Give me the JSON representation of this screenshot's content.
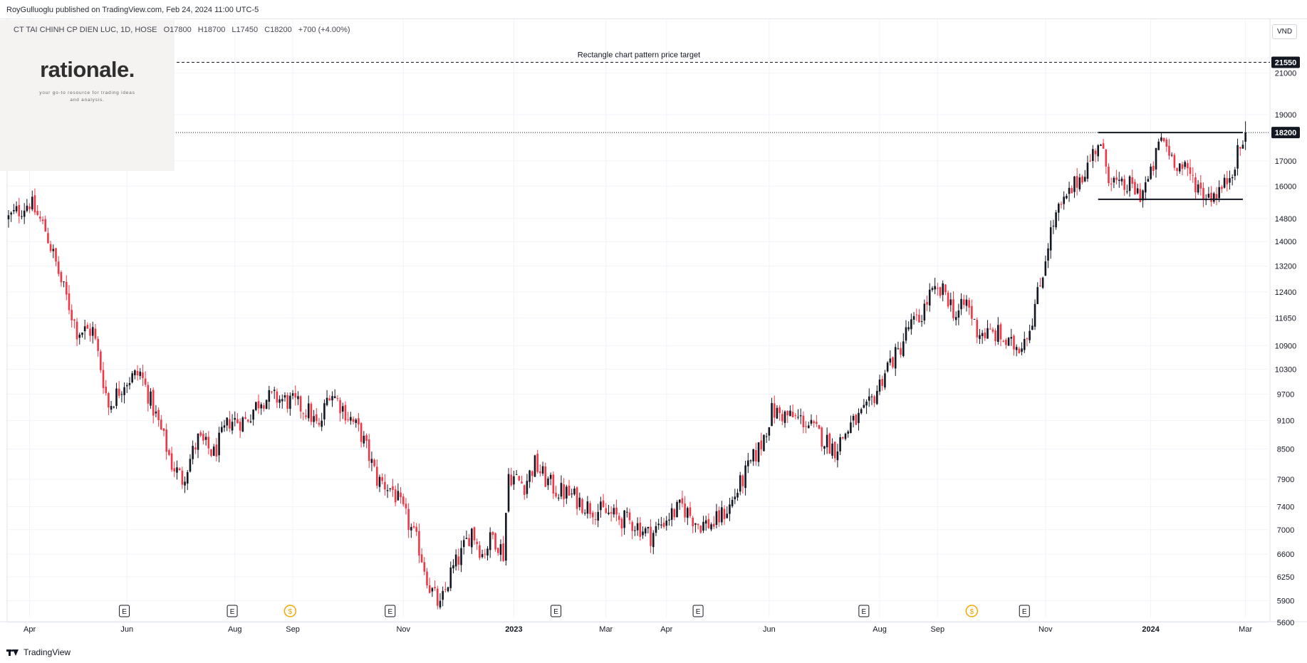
{
  "header": {
    "publisher_line": "RoyGulluoglu published on TradingView.com, Feb 24, 2024 11:00 UTC-5"
  },
  "symbol": {
    "name": "CT TAI CHINH CP DIEN LUC, 1D, HOSE",
    "open": "O17800",
    "high": "H18700",
    "low": "L17450",
    "close": "C18200",
    "change": "+700 (+4.00%)"
  },
  "watermark": {
    "title": "rationale.",
    "subtitle": "your go-to resource for trading ideas and analysis."
  },
  "currency": "VND",
  "footer": {
    "logo_text": "TradingView"
  },
  "colors": {
    "up": "#131722",
    "down": "#f23645",
    "grid": "#f0f3fa",
    "axis_text": "#131722",
    "price_label_bg": "#131722"
  },
  "chart_data": {
    "type": "candlestick",
    "scale": "log",
    "price_axis_ticks": [
      21000,
      19000,
      17000,
      16000,
      14800,
      14000,
      13200,
      12400,
      11650,
      10900,
      10300,
      9700,
      9100,
      8500,
      7900,
      7400,
      7000,
      6600,
      6250,
      5900,
      5600
    ],
    "time_axis_ticks": [
      {
        "label": "Apr",
        "bold": false,
        "i": 8
      },
      {
        "label": "Jun",
        "bold": false,
        "i": 45
      },
      {
        "label": "Aug",
        "bold": false,
        "i": 86
      },
      {
        "label": "Sep",
        "bold": false,
        "i": 108
      },
      {
        "label": "Nov",
        "bold": false,
        "i": 150
      },
      {
        "label": "2023",
        "bold": true,
        "i": 192
      },
      {
        "label": "Mar",
        "bold": false,
        "i": 227
      },
      {
        "label": "Apr",
        "bold": false,
        "i": 250
      },
      {
        "label": "Jun",
        "bold": false,
        "i": 289
      },
      {
        "label": "Aug",
        "bold": false,
        "i": 331
      },
      {
        "label": "Sep",
        "bold": false,
        "i": 353
      },
      {
        "label": "Nov",
        "bold": false,
        "i": 394
      },
      {
        "label": "2024",
        "bold": true,
        "i": 434
      },
      {
        "label": "Mar",
        "bold": false,
        "i": 470
      }
    ],
    "annotations": [
      {
        "type": "hline",
        "style": "dashed",
        "price": 21550,
        "label": "Rectangle chart pattern price target"
      },
      {
        "type": "segment",
        "price": 18200,
        "from_i": 414,
        "to_i": 469
      },
      {
        "type": "segment",
        "price": 15500,
        "from_i": 414,
        "to_i": 469
      }
    ],
    "last_price": 18200,
    "price_labels": [
      21550,
      18200
    ],
    "event_markers": [
      {
        "label": "E",
        "i": 44,
        "kind": "earnings"
      },
      {
        "label": "E",
        "i": 85,
        "kind": "earnings"
      },
      {
        "label": "$",
        "i": 107,
        "kind": "dividend"
      },
      {
        "label": "E",
        "i": 145,
        "kind": "earnings"
      },
      {
        "label": "E",
        "i": 208,
        "kind": "earnings"
      },
      {
        "label": "E",
        "i": 262,
        "kind": "earnings"
      },
      {
        "label": "E",
        "i": 325,
        "kind": "earnings"
      },
      {
        "label": "$",
        "i": 366,
        "kind": "dividend"
      },
      {
        "label": "E",
        "i": 386,
        "kind": "earnings"
      }
    ],
    "closes_anchor": [
      [
        0,
        14800
      ],
      [
        8,
        15400
      ],
      [
        14,
        14400
      ],
      [
        20,
        12700
      ],
      [
        26,
        11300
      ],
      [
        32,
        11300
      ],
      [
        38,
        9400
      ],
      [
        44,
        10000
      ],
      [
        50,
        10200
      ],
      [
        56,
        9200
      ],
      [
        62,
        8200
      ],
      [
        66,
        7900
      ],
      [
        72,
        8700
      ],
      [
        78,
        8400
      ],
      [
        84,
        9100
      ],
      [
        90,
        9100
      ],
      [
        96,
        9600
      ],
      [
        102,
        9600
      ],
      [
        108,
        9500
      ],
      [
        114,
        9300
      ],
      [
        118,
        8900
      ],
      [
        122,
        9800
      ],
      [
        128,
        9300
      ],
      [
        134,
        8800
      ],
      [
        140,
        7900
      ],
      [
        146,
        7700
      ],
      [
        152,
        7100
      ],
      [
        156,
        6700
      ],
      [
        160,
        6100
      ],
      [
        164,
        5800
      ],
      [
        168,
        6300
      ],
      [
        172,
        6600
      ],
      [
        176,
        7000
      ],
      [
        180,
        6600
      ],
      [
        184,
        6900
      ],
      [
        187,
        6700
      ],
      [
        188,
        6600
      ],
      [
        189,
        7300
      ],
      [
        190,
        8000
      ],
      [
        196,
        7800
      ],
      [
        200,
        8200
      ],
      [
        204,
        7900
      ],
      [
        208,
        7700
      ],
      [
        214,
        7600
      ],
      [
        220,
        7400
      ],
      [
        226,
        7300
      ],
      [
        232,
        7200
      ],
      [
        238,
        7100
      ],
      [
        244,
        6900
      ],
      [
        250,
        7200
      ],
      [
        256,
        7400
      ],
      [
        262,
        7100
      ],
      [
        268,
        7100
      ],
      [
        274,
        7400
      ],
      [
        280,
        8000
      ],
      [
        286,
        8600
      ],
      [
        290,
        9300
      ],
      [
        296,
        9200
      ],
      [
        302,
        9100
      ],
      [
        308,
        8800
      ],
      [
        314,
        8500
      ],
      [
        320,
        9000
      ],
      [
        326,
        9300
      ],
      [
        330,
        9800
      ],
      [
        334,
        10400
      ],
      [
        338,
        10700
      ],
      [
        342,
        11400
      ],
      [
        346,
        11600
      ],
      [
        350,
        12300
      ],
      [
        356,
        12400
      ],
      [
        360,
        11700
      ],
      [
        364,
        12100
      ],
      [
        368,
        11300
      ],
      [
        372,
        11200
      ],
      [
        376,
        11200
      ],
      [
        380,
        10900
      ],
      [
        384,
        10900
      ],
      [
        388,
        11400
      ],
      [
        392,
        12600
      ],
      [
        394,
        13500
      ],
      [
        395,
        14000
      ],
      [
        398,
        14900
      ],
      [
        402,
        15500
      ],
      [
        406,
        16200
      ],
      [
        410,
        16800
      ],
      [
        414,
        17800
      ],
      [
        418,
        16500
      ],
      [
        422,
        15900
      ],
      [
        426,
        16000
      ],
      [
        430,
        15700
      ],
      [
        434,
        16400
      ],
      [
        438,
        18000
      ],
      [
        442,
        17200
      ],
      [
        446,
        16700
      ],
      [
        450,
        16300
      ],
      [
        454,
        15700
      ],
      [
        458,
        15700
      ],
      [
        462,
        16000
      ],
      [
        466,
        17000
      ],
      [
        468,
        17500
      ],
      [
        470,
        18200
      ]
    ]
  }
}
